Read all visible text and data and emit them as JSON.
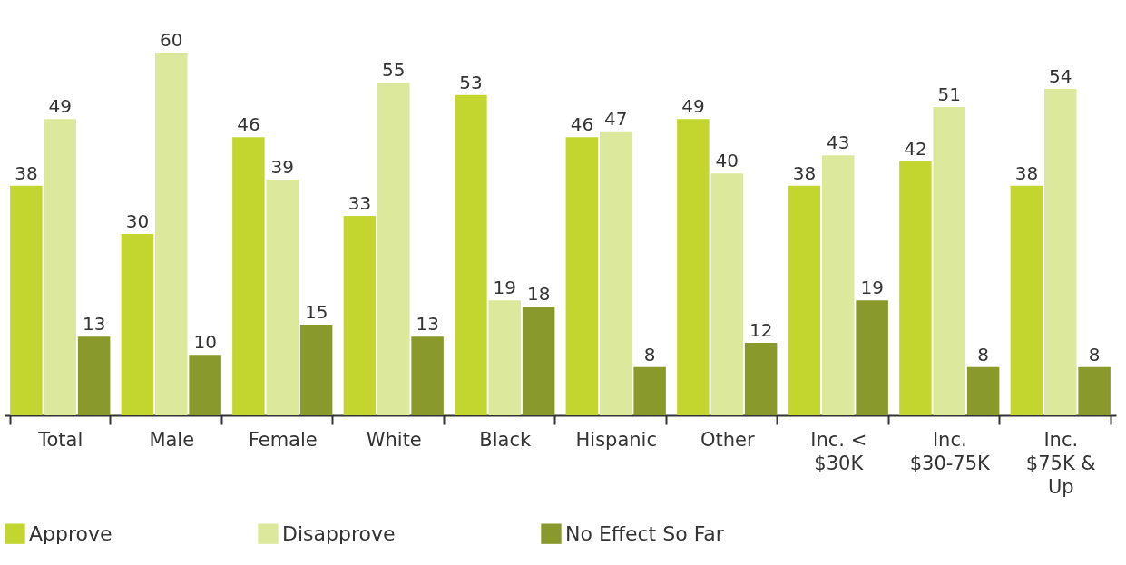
{
  "chart_data": {
    "type": "bar",
    "categories": [
      "Total",
      "Male",
      "Female",
      "White",
      "Black",
      "Hispanic",
      "Other",
      "Inc. < $30K",
      "Inc. $30-75K",
      "Inc. $75K & Up"
    ],
    "series": [
      {
        "name": "Approve",
        "color": "#c2d62f",
        "values": [
          38,
          30,
          46,
          33,
          53,
          46,
          49,
          38,
          42,
          38
        ]
      },
      {
        "name": "Disapprove",
        "color": "#dce89b",
        "values": [
          49,
          60,
          39,
          55,
          19,
          47,
          40,
          43,
          51,
          54
        ]
      },
      {
        "name": "No Effect So Far",
        "color": "#8a992b",
        "values": [
          13,
          10,
          15,
          13,
          18,
          8,
          12,
          19,
          8,
          8
        ]
      }
    ],
    "data_labels": true,
    "legend": "bottom",
    "grid": false
  }
}
